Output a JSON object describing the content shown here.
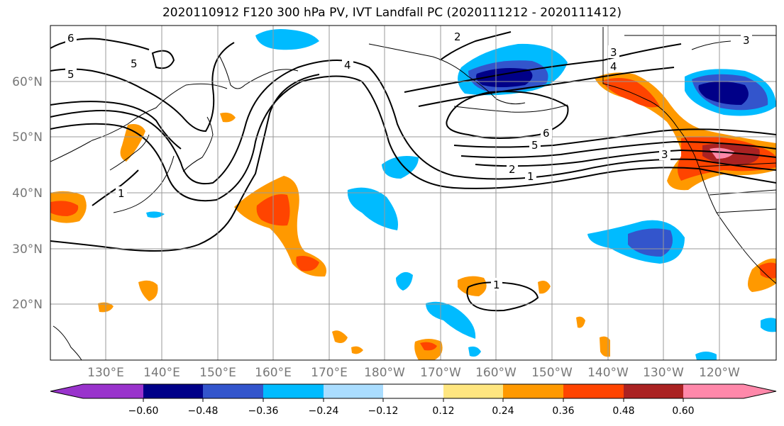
{
  "title": "2020110912 F120 300 hPa PV, IVT Landfall PC (2020111212 - 2020111412)",
  "lat_labels": [
    "60°N",
    "50°N",
    "40°N",
    "30°N",
    "20°N"
  ],
  "lon_labels": [
    "130°E",
    "140°E",
    "150°E",
    "160°E",
    "170°E",
    "180°W",
    "170°W",
    "160°W",
    "150°W",
    "140°W",
    "130°W",
    "120°W"
  ],
  "colorbar": {
    "ticks": [
      "−0.60",
      "−0.48",
      "−0.36",
      "−0.24",
      "−0.12",
      "0.12",
      "0.24",
      "0.36",
      "0.48",
      "0.60"
    ],
    "colors": [
      "#9933cc",
      "#000088",
      "#3355cc",
      "#00bbff",
      "#aaddff",
      "#ffffff",
      "#ffe680",
      "#ff9900",
      "#ff4400",
      "#aa2222",
      "#ff88aa"
    ]
  },
  "contour_labels": [
    "6",
    "5",
    "5",
    "1",
    "4",
    "2",
    "3",
    "4",
    "6",
    "5",
    "2",
    "1",
    "3",
    "3",
    "1"
  ]
}
